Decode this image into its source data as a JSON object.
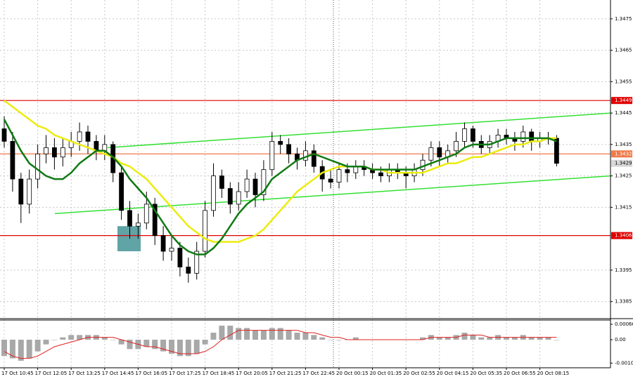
{
  "chart_data": [
    {
      "type": "candlestick",
      "categories": [
        "17 Oct 10:45",
        null,
        null,
        null,
        "17 Oct 12:05",
        null,
        null,
        null,
        "17 Oct 13:25",
        null,
        null,
        null,
        "17 Oct 14:45",
        null,
        null,
        null,
        "17 Oct 16:05",
        null,
        null,
        null,
        "17 Oct 17:25",
        null,
        null,
        null,
        "17 Oct 18:45",
        null,
        null,
        null,
        "17 Oct 20:05",
        null,
        null,
        null,
        "17 Oct 21:25",
        null,
        null,
        null,
        "17 Oct 22:45",
        null,
        null,
        null,
        "20 Oct 00:15",
        null,
        null,
        null,
        "20 Oct 01:35",
        null,
        null,
        null,
        "20 Oct 02:55",
        null,
        null,
        null,
        "20 Oct 04:15",
        null,
        null,
        null,
        "20 Oct 05:35",
        null,
        null,
        null,
        "20 Oct 06:55",
        null,
        null,
        null,
        "20 Oct 08:15",
        null,
        null
      ],
      "open": [
        1.344,
        1.3436,
        1.3424,
        1.3416,
        1.3424,
        1.3432,
        1.3434,
        1.3431,
        1.3434,
        1.3436,
        1.3439,
        1.3436,
        1.3433,
        1.3435,
        1.3426,
        1.3414,
        1.3409,
        1.341,
        1.3416,
        1.3406,
        1.3401,
        1.3402,
        1.3396,
        1.3394,
        1.3401,
        1.3414,
        1.3425,
        1.3421,
        1.3416,
        1.342,
        1.3424,
        1.3419,
        1.3427,
        1.3436,
        1.3435,
        1.3432,
        1.343,
        1.3433,
        1.3428,
        1.3424,
        1.3423,
        1.3427,
        1.3426,
        1.3428,
        1.3427,
        1.3426,
        1.3425,
        1.3427,
        1.3426,
        1.3425,
        1.3427,
        1.343,
        1.3434,
        1.3431,
        1.3433,
        1.3436,
        1.344,
        1.3436,
        1.3434,
        1.3436,
        1.3438,
        1.3437,
        1.3436,
        1.3439,
        1.3436,
        1.3437,
        1.3437
      ],
      "high": [
        1.3444,
        1.3439,
        1.3426,
        1.3427,
        1.3435,
        1.3438,
        1.3437,
        1.3437,
        1.3439,
        1.3442,
        1.3441,
        1.3438,
        1.3438,
        1.3436,
        1.3428,
        1.3417,
        1.3413,
        1.342,
        1.3418,
        1.3409,
        1.3406,
        1.3404,
        1.3399,
        1.3404,
        1.3417,
        1.3429,
        1.3427,
        1.3423,
        1.3423,
        1.3427,
        1.3426,
        1.343,
        1.3439,
        1.3438,
        1.3437,
        1.3434,
        1.3436,
        1.3435,
        1.343,
        1.3427,
        1.3429,
        1.3429,
        1.343,
        1.343,
        1.3429,
        1.3428,
        1.3429,
        1.3429,
        1.3428,
        1.3429,
        1.3432,
        1.3436,
        1.3436,
        1.3435,
        1.3439,
        1.3442,
        1.3441,
        1.3438,
        1.3438,
        1.344,
        1.344,
        1.3439,
        1.3441,
        1.344,
        1.3439,
        1.3439,
        1.3438
      ],
      "low": [
        1.3434,
        1.342,
        1.341,
        1.3413,
        1.3421,
        1.3429,
        1.3427,
        1.3428,
        1.3431,
        1.3433,
        1.3432,
        1.343,
        1.343,
        1.3423,
        1.3411,
        1.3405,
        1.3405,
        1.3408,
        1.3403,
        1.3398,
        1.3398,
        1.3393,
        1.3391,
        1.3392,
        1.3399,
        1.3412,
        1.3418,
        1.3413,
        1.3414,
        1.3418,
        1.3415,
        1.3417,
        1.3425,
        1.3432,
        1.3429,
        1.3427,
        1.3428,
        1.3426,
        1.342,
        1.3421,
        1.3421,
        1.3423,
        1.3424,
        1.3425,
        1.3424,
        1.3423,
        1.3423,
        1.3424,
        1.3421,
        1.3423,
        1.3425,
        1.3428,
        1.3428,
        1.3429,
        1.3431,
        1.3434,
        1.3434,
        1.3432,
        1.3432,
        1.3434,
        1.3435,
        1.3433,
        1.3434,
        1.3433,
        1.3434,
        1.3435,
        1.3428
      ],
      "close": [
        1.3436,
        1.3424,
        1.3416,
        1.3424,
        1.3432,
        1.3434,
        1.3431,
        1.3434,
        1.3436,
        1.3439,
        1.3436,
        1.3433,
        1.3435,
        1.3426,
        1.3414,
        1.3409,
        1.341,
        1.3416,
        1.3406,
        1.3401,
        1.3402,
        1.3396,
        1.3394,
        1.3401,
        1.3414,
        1.3425,
        1.3421,
        1.3416,
        1.342,
        1.3424,
        1.3419,
        1.3427,
        1.3436,
        1.3435,
        1.3432,
        1.343,
        1.3433,
        1.3428,
        1.3424,
        1.3423,
        1.3427,
        1.3426,
        1.3428,
        1.3427,
        1.3426,
        1.3425,
        1.3427,
        1.3426,
        1.3425,
        1.3427,
        1.343,
        1.3434,
        1.3431,
        1.3433,
        1.3436,
        1.344,
        1.3436,
        1.3434,
        1.3436,
        1.3438,
        1.3437,
        1.3436,
        1.3439,
        1.3436,
        1.3437,
        1.3437,
        1.3429
      ],
      "up_color": "#ffffff",
      "down_color": "#000000",
      "lines": [
        {
          "color": "#ecec10",
          "values": [
            1.3449,
            1.3447,
            1.3445,
            1.3443,
            1.3441,
            1.344,
            1.3438,
            1.3437,
            1.3436,
            1.3435,
            1.3434,
            1.3433,
            1.3432,
            1.3431,
            1.3429,
            1.3428,
            1.3426,
            1.3424,
            1.3421,
            1.3418,
            1.3415,
            1.3412,
            1.3409,
            1.3407,
            1.3405,
            1.3404,
            1.3404,
            1.3404,
            1.3404,
            1.3405,
            1.3406,
            1.3408,
            1.3411,
            1.3414,
            1.3417,
            1.342,
            1.3422,
            1.3424,
            1.3426,
            1.3427,
            1.3428,
            1.3428,
            1.3428,
            1.3428,
            1.3427,
            1.3427,
            1.3426,
            1.3426,
            1.3426,
            1.3426,
            1.3426,
            1.3427,
            1.3428,
            1.3429,
            1.3429,
            1.343,
            1.3431,
            1.3431,
            1.3432,
            1.3433,
            1.3434,
            1.3435,
            1.3435,
            1.3436,
            1.3436,
            1.3437,
            1.3437
          ]
        },
        {
          "color": "#0f7a12",
          "values": [
            1.3443,
            1.3438,
            1.3433,
            1.3429,
            1.3427,
            1.3425,
            1.3424,
            1.3424,
            1.3426,
            1.3429,
            1.3431,
            1.3433,
            1.3433,
            1.3431,
            1.3428,
            1.3424,
            1.3421,
            1.3418,
            1.3414,
            1.341,
            1.3406,
            1.3403,
            1.3401,
            1.34,
            1.34,
            1.3402,
            1.3405,
            1.3409,
            1.3413,
            1.3416,
            1.3418,
            1.342,
            1.3424,
            1.3426,
            1.3428,
            1.343,
            1.3431,
            1.3432,
            1.3431,
            1.343,
            1.3429,
            1.3428,
            1.3428,
            1.3428,
            1.3427,
            1.3427,
            1.3427,
            1.3427,
            1.3427,
            1.3427,
            1.3428,
            1.3429,
            1.343,
            1.3431,
            1.3432,
            1.3434,
            1.3435,
            1.3435,
            1.3435,
            1.3436,
            1.3437,
            1.3437,
            1.3437,
            1.3437,
            1.3437,
            1.3437,
            1.3436
          ]
        }
      ],
      "trendlines": [
        {
          "color": "#33e033",
          "values": [
            1.3434,
            1.3445
          ]
        },
        {
          "color": "#33e033",
          "values": [
            1.3413,
            1.3425
          ]
        }
      ],
      "levels": [
        {
          "value": 1.3449,
          "color": "#e00000"
        },
        {
          "value": 1.3406,
          "color": "#e00000"
        },
        {
          "value": 1.3432,
          "color": "#f07a4a"
        }
      ],
      "current_price": 1.3429,
      "highlight": {
        "high": 1.3409,
        "low": 1.3401,
        "color": "#4f9a9c"
      },
      "ylim": [
        1.338,
        1.3481
      ],
      "yticks": [
        1.3475,
        1.3465,
        1.3455,
        1.3445,
        1.3435,
        1.3425,
        1.3415,
        1.3395,
        1.3385
      ],
      "grid": true
    },
    {
      "type": "macd",
      "values": [
        -0.0007,
        -0.0008,
        -0.0009,
        -0.0008,
        -0.0005,
        -0.0002,
        0,
        0.0001,
        0.0002,
        0.0002,
        0.0002,
        0.0002,
        0.0001,
        0,
        -0.0002,
        -0.0004,
        -0.0004,
        -0.0003,
        -0.0004,
        -0.0005,
        -0.0006,
        -0.0007,
        -0.0007,
        -0.0006,
        -0.0002,
        0.0003,
        0.0006,
        0.0006,
        0.0005,
        0.0005,
        0.0004,
        0.0004,
        0.0005,
        0.0005,
        0.0004,
        0.0003,
        0.0003,
        0.0002,
        0.0001,
        0,
        0,
        0,
        0.0001,
        0,
        0,
        0,
        0,
        0,
        0,
        0,
        0.0001,
        0.0002,
        0.0001,
        0.0001,
        0.0002,
        0.0003,
        0.0002,
        0.0001,
        0.0001,
        0.0002,
        0.0001,
        0.0001,
        0.0002,
        0.0001,
        0.0001,
        0.0001,
        0
      ],
      "color": "#a8a8a8",
      "signal": [
        -0.0005,
        -0.0007,
        -0.0008,
        -0.0008,
        -0.0007,
        -0.0005,
        -0.0003,
        -0.0002,
        -0.0001,
        0,
        0.0001,
        0.0001,
        0.0001,
        0.0001,
        0,
        -0.0001,
        -0.0002,
        -0.0003,
        -0.0003,
        -0.0004,
        -0.0005,
        -0.0006,
        -0.0006,
        -0.0006,
        -0.0005,
        -0.0003,
        0,
        0.0002,
        0.0004,
        0.0004,
        0.0004,
        0.0004,
        0.0004,
        0.0004,
        0.0004,
        0.0004,
        0.0003,
        0.0003,
        0.0002,
        0.0001,
        0.0001,
        0,
        0,
        0,
        0,
        0,
        0,
        0,
        0,
        0,
        0,
        0.0001,
        0.0001,
        0.0001,
        0.0001,
        0.0002,
        0.0002,
        0.0002,
        0.0001,
        0.0001,
        0.0001,
        0.0001,
        0.0001,
        0.0001,
        0.0001,
        0.0001,
        0.0001
      ],
      "signal_color": "#e02020",
      "ylim": [
        -0.0012,
        0.00084
      ],
      "yticks": [
        0.00066,
        {
          "value": 0,
          "label": "0.00"
        },
        {
          "value": -0.001,
          "label": "-0.0010"
        }
      ]
    }
  ]
}
